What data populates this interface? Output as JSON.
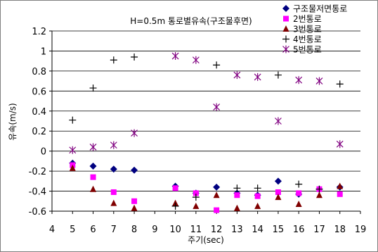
{
  "chart_data": {
    "type": "scatter",
    "title": "H=0.5m 통로별유속(구조물후면)",
    "xlabel": "주기(sec)",
    "ylabel": "유속(m/s)",
    "xlim": [
      4,
      19
    ],
    "ylim": [
      -0.6,
      1.2
    ],
    "x_ticks": [
      4,
      5,
      6,
      7,
      8,
      9,
      10,
      11,
      12,
      13,
      14,
      15,
      16,
      17,
      18,
      19
    ],
    "y_ticks": [
      -0.6,
      -0.4,
      -0.2,
      0,
      0.2,
      0.4,
      0.6,
      0.8,
      1,
      1.2
    ],
    "grid": "horizontal",
    "legend_position": "top-right",
    "series": [
      {
        "name": "구조물저면통로",
        "marker": "diamond",
        "color": "#000080",
        "x": [
          5,
          6,
          7,
          8,
          10,
          11,
          12,
          13,
          14,
          15,
          16,
          17,
          18
        ],
        "y": [
          -0.12,
          -0.15,
          -0.18,
          -0.19,
          -0.35,
          -0.42,
          -0.36,
          -0.42,
          -0.44,
          -0.3,
          -0.43,
          -0.38,
          -0.36
        ]
      },
      {
        "name": "2번통로",
        "marker": "square",
        "color": "#ff00ff",
        "x": [
          5,
          6,
          7,
          8,
          10,
          11,
          12,
          13,
          14,
          15,
          16,
          17,
          18
        ],
        "y": [
          -0.14,
          -0.26,
          -0.41,
          -0.5,
          -0.37,
          -0.42,
          -0.59,
          -0.44,
          -0.45,
          -0.41,
          -0.42,
          -0.38,
          -0.43
        ]
      },
      {
        "name": "3번통로",
        "marker": "triangle",
        "color": "#800000",
        "x": [
          5,
          6,
          7,
          8,
          10,
          11,
          12,
          13,
          14,
          15,
          16,
          17,
          18
        ],
        "y": [
          -0.17,
          -0.38,
          -0.52,
          -0.57,
          -0.52,
          -0.55,
          -0.44,
          -0.57,
          -0.55,
          -0.46,
          -0.53,
          -0.44,
          -0.35
        ]
      },
      {
        "name": "4번통로",
        "marker": "plus",
        "color": "#000000",
        "x": [
          5,
          6,
          7,
          8,
          10,
          11,
          12,
          13,
          14,
          15,
          16,
          17,
          18
        ],
        "y": [
          0.31,
          0.63,
          0.91,
          0.94,
          -0.55,
          -0.46,
          0.86,
          -0.37,
          -0.37,
          0.76,
          -0.33,
          -0.38,
          0.67
        ]
      },
      {
        "name": "5번통로",
        "marker": "star",
        "color": "#800080",
        "x": [
          5,
          6,
          7,
          8,
          10,
          11,
          12,
          13,
          14,
          15,
          16,
          17,
          18
        ],
        "y": [
          0.01,
          0.04,
          0.06,
          0.18,
          0.95,
          0.91,
          0.44,
          0.76,
          0.74,
          0.3,
          0.71,
          0.7,
          0.07
        ]
      }
    ]
  }
}
